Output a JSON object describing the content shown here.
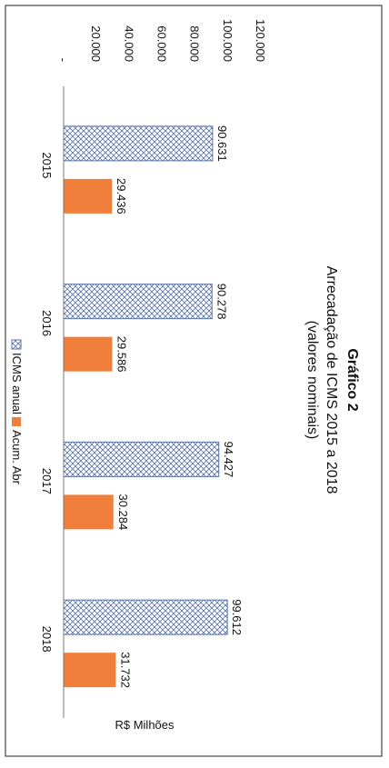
{
  "chart_data": {
    "type": "bar",
    "title": "Gráfico 2",
    "subtitle_line1": "Arrecadação de ICMS 2015 a 2018",
    "subtitle_line2": "(valores nominais)",
    "xlabel": "",
    "ylabel": "R$ Milhões",
    "categories": [
      "2015",
      "2016",
      "2017",
      "2018"
    ],
    "series": [
      {
        "name": "ICMS anual",
        "values": [
          90631,
          90278,
          94427,
          99612
        ],
        "labels": [
          "90.631",
          "90.278",
          "94.427",
          "99.612"
        ],
        "color": "#5a72a8",
        "pattern": "hatch"
      },
      {
        "name": "Acum. Abr",
        "values": [
          29436,
          29586,
          30284,
          31732
        ],
        "labels": [
          "29.436",
          "29.586",
          "30.284",
          "31.732"
        ],
        "color": "#f07f3c",
        "pattern": "solid"
      }
    ],
    "ylim": [
      0,
      120000
    ],
    "yticks": [
      0,
      20000,
      40000,
      60000,
      80000,
      100000,
      120000
    ],
    "ytick_labels": [
      "-",
      "20.000",
      "40.000",
      "60.000",
      "80.000",
      "100.000",
      "120.000"
    ],
    "grid": false,
    "legend_position": "bottom",
    "orientation": "page rotated 90° counter-clockwise"
  }
}
